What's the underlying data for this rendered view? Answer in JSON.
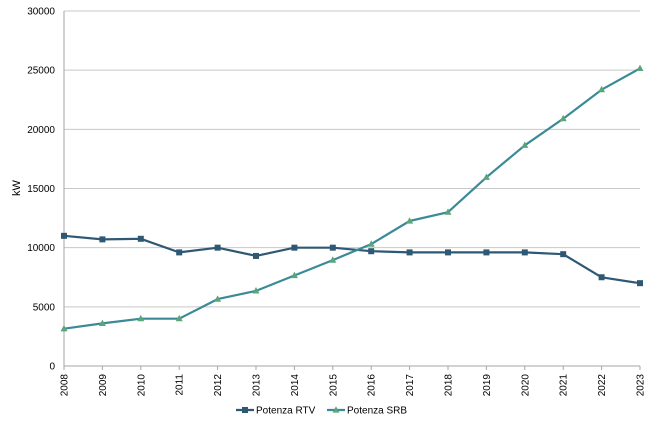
{
  "chart_data": {
    "type": "line",
    "title": "",
    "xlabel": "",
    "ylabel": "kW",
    "ylim": [
      0,
      30000
    ],
    "y_ticks": [
      0,
      5000,
      10000,
      15000,
      20000,
      25000,
      30000
    ],
    "grid": "horizontal",
    "legend_position": "bottom",
    "categories": [
      "2008",
      "2009",
      "2010",
      "2011",
      "2012",
      "2013",
      "2014",
      "2015",
      "2016",
      "2017",
      "2018",
      "2019",
      "2020",
      "2021",
      "2022",
      "2023"
    ],
    "series": [
      {
        "name": "Potenza RTV",
        "color": "#2e5874",
        "marker": "square",
        "values": [
          11000,
          10700,
          10750,
          9600,
          10000,
          9300,
          10000,
          10000,
          9700,
          9600,
          9600,
          9600,
          9600,
          9450,
          7500,
          7000
        ]
      },
      {
        "name": "Potenza SRB",
        "color": "#3a8a98",
        "marker_color": "#5aa57a",
        "marker": "triangle",
        "values": [
          3150,
          3600,
          4000,
          4000,
          5650,
          6350,
          7650,
          8950,
          10300,
          12250,
          13000,
          15950,
          18650,
          20900,
          23350,
          25150
        ]
      }
    ]
  }
}
